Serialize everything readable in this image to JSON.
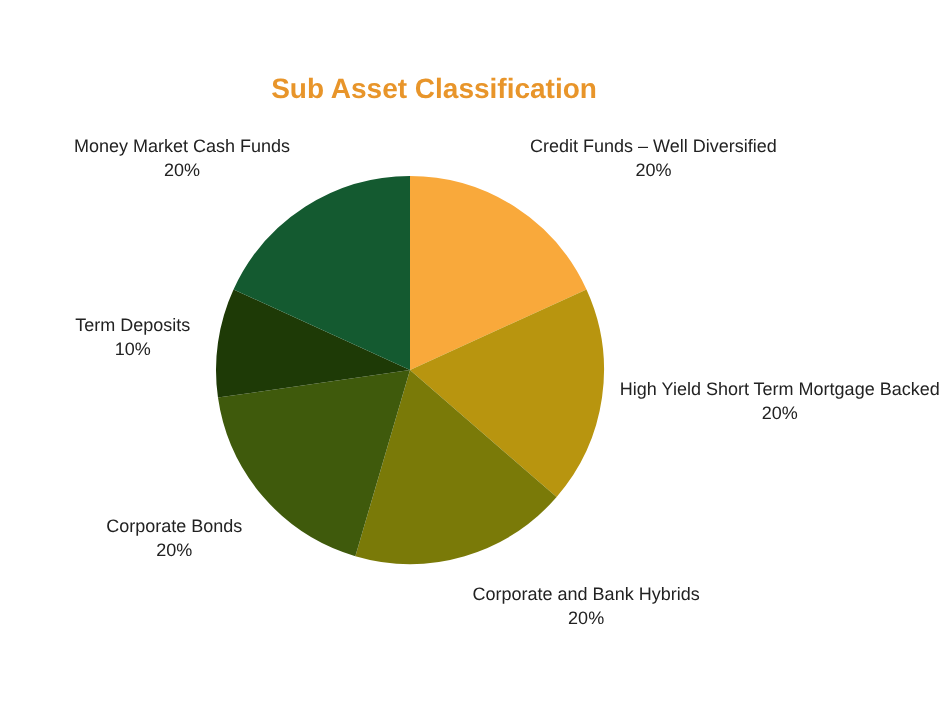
{
  "chart_data": {
    "type": "pie",
    "title": "Sub Asset Classification",
    "categories": [
      "Credit Funds – Well Diversified",
      "High Yield Short Term Mortgage Backed",
      "Corporate and Bank Hybrids",
      "Corporate Bonds",
      "Term Deposits",
      "Money Market Cash Funds"
    ],
    "values": [
      20,
      20,
      20,
      20,
      10,
      20
    ],
    "value_labels": [
      "20%",
      "20%",
      "20%",
      "20%",
      "10%",
      "20%"
    ],
    "colors": [
      "#f9a93b",
      "#b8950f",
      "#7a7a08",
      "#3f5a0c",
      "#1e3a06",
      "#145a30"
    ],
    "legend": false
  }
}
